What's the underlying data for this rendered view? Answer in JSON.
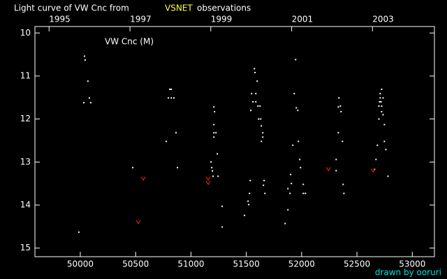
{
  "chart_data": {
    "type": "scatter",
    "title": [
      "Light curve of VW Cnc from",
      "VSNET",
      "observations"
    ],
    "title_colors": [
      "#ffffff",
      "#ffff40",
      "#ffffff"
    ],
    "annotation": "VW Cnc (M)",
    "credit": "drawn by ooruri",
    "credit_color": "#00e0e0",
    "background": "#000000",
    "axis_color": "#ffffff",
    "xlim": [
      49590,
      53200
    ],
    "xticks": [
      50000,
      50500,
      51000,
      51500,
      52000,
      52500,
      53000
    ],
    "x2ticks": [
      {
        "value": 49718,
        "label": "1995"
      },
      {
        "value": 50449,
        "label": "1997"
      },
      {
        "value": 51179,
        "label": "1999"
      },
      {
        "value": 51910,
        "label": "2001"
      },
      {
        "value": 52640,
        "label": "2003"
      }
    ],
    "ylim": [
      9.85,
      15.2
    ],
    "y_inverted": true,
    "yticks": [
      10,
      11,
      12,
      13,
      14,
      15
    ],
    "series": [
      {
        "color": "#ffffff",
        "marker": "dot",
        "x": [
          49987,
          50038,
          50044,
          50032,
          50069,
          50082,
          50095,
          50474,
          50777,
          50809,
          50822,
          50796,
          50822,
          50846,
          50865,
          50878,
          51188,
          51181,
          51194,
          51200,
          51207,
          51213,
          51207,
          51207,
          51207,
          51226,
          51238,
          51245,
          51282,
          51282,
          51484,
          51516,
          51522,
          51529,
          51535,
          51541,
          51548,
          51560,
          51573,
          51579,
          51586,
          51586,
          51598,
          51605,
          51611,
          51624,
          51630,
          51636,
          51636,
          51649,
          51649,
          51655,
          51661,
          51668,
          51851,
          51876,
          51876,
          51895,
          51901,
          51908,
          51920,
          51933,
          51946,
          51952,
          51965,
          51971,
          51983,
          51990,
          52015,
          52015,
          52034,
          52312,
          52312,
          52331,
          52337,
          52331,
          52350,
          52356,
          52369,
          52375,
          52382,
          52659,
          52672,
          52685,
          52698,
          52698,
          52704,
          52710,
          52710,
          52717,
          52723,
          52723,
          52723,
          52736,
          52736,
          52748,
          52748,
          52761,
          52780
        ],
        "values": [
          14.63,
          10.54,
          10.63,
          11.62,
          11.12,
          11.51,
          11.62,
          13.13,
          12.52,
          11.31,
          11.31,
          11.51,
          11.51,
          11.51,
          12.32,
          13.13,
          13.13,
          13.0,
          13.21,
          13.33,
          11.72,
          11.83,
          12.13,
          12.32,
          12.42,
          12.32,
          12.81,
          13.33,
          14.03,
          14.51,
          14.24,
          13.91,
          13.99,
          13.73,
          13.43,
          11.8,
          11.41,
          11.6,
          10.83,
          10.92,
          11.41,
          11.6,
          11.12,
          11.7,
          12.0,
          11.7,
          12.0,
          12.16,
          12.52,
          12.42,
          12.32,
          13.54,
          13.43,
          13.73,
          14.43,
          14.11,
          13.62,
          13.73,
          13.29,
          13.5,
          12.61,
          11.41,
          10.62,
          11.74,
          11.8,
          12.52,
          12.94,
          13.13,
          13.52,
          13.73,
          13.73,
          13.2,
          12.94,
          12.32,
          11.51,
          11.72,
          11.7,
          11.83,
          12.52,
          13.52,
          13.73,
          13.17,
          12.94,
          12.61,
          12.0,
          11.7,
          11.6,
          11.51,
          11.41,
          11.6,
          11.31,
          11.7,
          11.83,
          11.51,
          11.9,
          12.13,
          12.52,
          12.71,
          13.33
        ]
      },
      {
        "color": "#ff2020",
        "marker": "upper-limit",
        "x": [
          50524,
          50569,
          51156,
          51156,
          52243,
          52647
        ],
        "values": [
          14.4,
          13.39,
          13.39,
          13.49,
          13.17,
          13.2
        ]
      }
    ]
  }
}
